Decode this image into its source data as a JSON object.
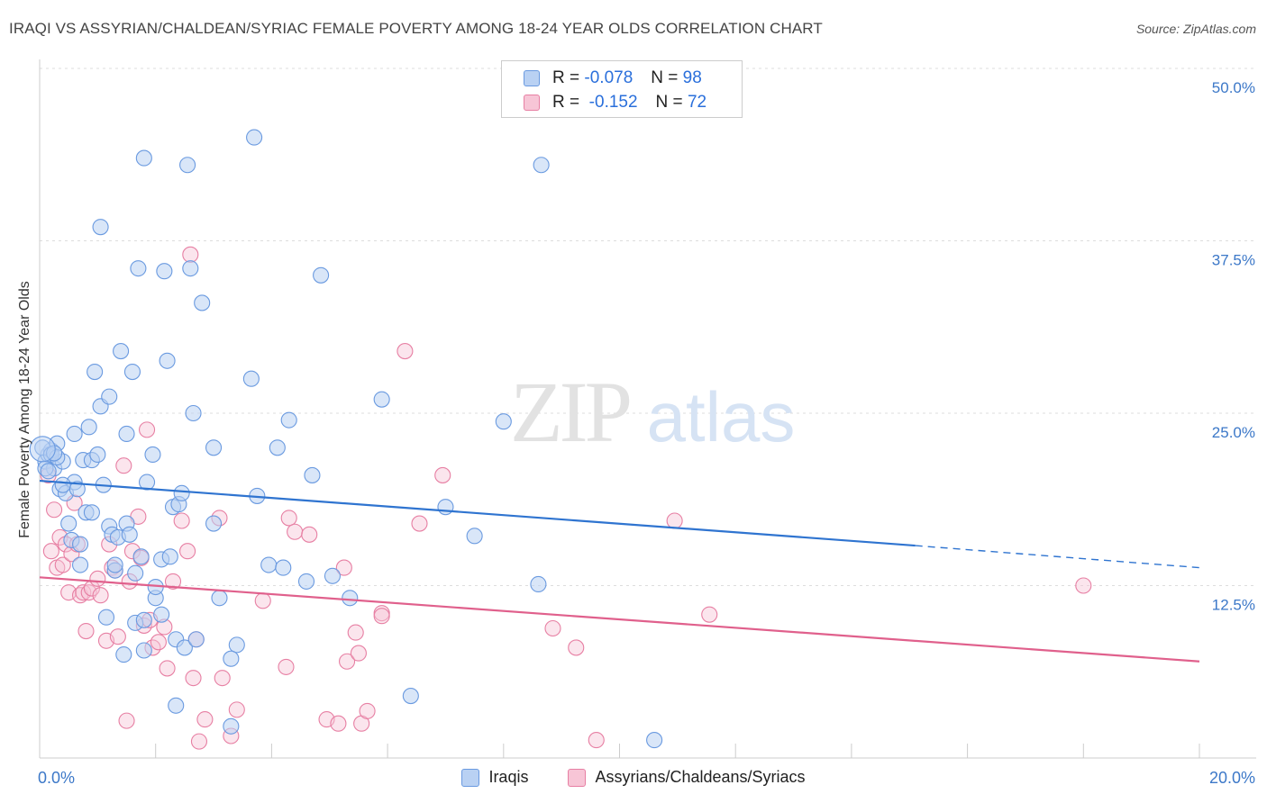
{
  "title": "IRAQI VS ASSYRIAN/CHALDEAN/SYRIAC FEMALE POVERTY AMONG 18-24 YEAR OLDS CORRELATION CHART",
  "source": "Source: ZipAtlas.com",
  "watermark": "ZIPatlas",
  "legend": {
    "rows": [
      {
        "r_label": "R =",
        "r_value": "-0.078",
        "n_label": "N =",
        "n_value": "98",
        "color": "#6a9ae0",
        "fill": "#b9d1f3"
      },
      {
        "r_label": "R =",
        "r_value": "-0.152",
        "n_label": "N =",
        "n_value": "72",
        "color": "#e77fa3",
        "fill": "#f7c5d6"
      }
    ]
  },
  "chart_data": {
    "type": "scatter",
    "ylabel": "Female Poverty Among 18-24 Year Olds",
    "x_tick_labels": [
      "0.0%",
      "20.0%"
    ],
    "y_tick_labels": [
      "12.5%",
      "25.0%",
      "37.5%",
      "50.0%"
    ],
    "x_range": [
      0,
      20
    ],
    "y_range": [
      0,
      50
    ],
    "grid": true,
    "colors": {
      "iraqis": "#2f74d0",
      "iraqis_fill": "#b9d1f3",
      "assyrians": "#e0608c",
      "assyrians_fill": "#f7c5d6",
      "tick_text": "#3c78c8"
    },
    "series": [
      {
        "name": "Iraqis",
        "points": [
          [
            0.1,
            21.5
          ],
          [
            0.15,
            22.0
          ],
          [
            0.2,
            22.3
          ],
          [
            0.25,
            21.0
          ],
          [
            0.3,
            22.8
          ],
          [
            0.35,
            19.5
          ],
          [
            0.4,
            21.5
          ],
          [
            0.45,
            19.2
          ],
          [
            0.5,
            17.0
          ],
          [
            0.55,
            15.8
          ],
          [
            0.6,
            20.0
          ],
          [
            0.65,
            19.5
          ],
          [
            0.6,
            23.5
          ],
          [
            0.7,
            15.5
          ],
          [
            0.7,
            14.0
          ],
          [
            0.75,
            21.6
          ],
          [
            0.8,
            17.8
          ],
          [
            0.85,
            24.0
          ],
          [
            0.9,
            21.6
          ],
          [
            0.9,
            17.8
          ],
          [
            0.95,
            28.0
          ],
          [
            1.0,
            22.0
          ],
          [
            1.05,
            25.5
          ],
          [
            1.05,
            38.5
          ],
          [
            1.1,
            19.8
          ],
          [
            1.15,
            10.2
          ],
          [
            1.2,
            16.8
          ],
          [
            1.2,
            26.2
          ],
          [
            1.25,
            16.2
          ],
          [
            1.3,
            13.6
          ],
          [
            1.3,
            14.0
          ],
          [
            1.35,
            16.0
          ],
          [
            1.4,
            29.5
          ],
          [
            1.45,
            7.5
          ],
          [
            1.5,
            17.0
          ],
          [
            1.5,
            23.5
          ],
          [
            1.55,
            16.2
          ],
          [
            1.6,
            28.0
          ],
          [
            1.65,
            9.8
          ],
          [
            1.65,
            13.4
          ],
          [
            1.7,
            35.5
          ],
          [
            1.75,
            14.6
          ],
          [
            1.8,
            7.8
          ],
          [
            1.8,
            10.0
          ],
          [
            1.8,
            43.5
          ],
          [
            1.85,
            20.0
          ],
          [
            1.95,
            22.0
          ],
          [
            2.0,
            11.6
          ],
          [
            2.0,
            12.4
          ],
          [
            2.1,
            10.4
          ],
          [
            2.1,
            14.4
          ],
          [
            2.15,
            35.3
          ],
          [
            2.2,
            28.8
          ],
          [
            2.25,
            14.6
          ],
          [
            2.3,
            18.2
          ],
          [
            2.35,
            8.6
          ],
          [
            2.35,
            3.8
          ],
          [
            2.4,
            18.4
          ],
          [
            2.45,
            19.2
          ],
          [
            2.5,
            8.0
          ],
          [
            2.55,
            43.0
          ],
          [
            2.6,
            35.5
          ],
          [
            2.65,
            25.0
          ],
          [
            2.7,
            8.6
          ],
          [
            2.8,
            33.0
          ],
          [
            3.0,
            17.0
          ],
          [
            3.0,
            22.5
          ],
          [
            3.1,
            11.6
          ],
          [
            3.3,
            2.3
          ],
          [
            3.4,
            8.2
          ],
          [
            3.3,
            7.2
          ],
          [
            3.65,
            27.5
          ],
          [
            3.7,
            45.0
          ],
          [
            3.75,
            19.0
          ],
          [
            3.95,
            14.0
          ],
          [
            4.1,
            22.5
          ],
          [
            4.2,
            13.8
          ],
          [
            4.3,
            24.5
          ],
          [
            4.6,
            12.8
          ],
          [
            4.7,
            20.5
          ],
          [
            4.85,
            35.0
          ],
          [
            5.05,
            13.2
          ],
          [
            5.35,
            11.6
          ],
          [
            5.9,
            26.0
          ],
          [
            6.4,
            4.5
          ],
          [
            7.0,
            18.2
          ],
          [
            7.5,
            16.1
          ],
          [
            8.0,
            24.4
          ],
          [
            8.6,
            12.6
          ],
          [
            8.65,
            43.0
          ],
          [
            10.6,
            1.3
          ],
          [
            0.05,
            22.5
          ],
          [
            0.1,
            21.0
          ],
          [
            0.2,
            22.0
          ],
          [
            0.3,
            21.8
          ],
          [
            0.15,
            20.8
          ],
          [
            0.4,
            19.8
          ],
          [
            0.25,
            22.1
          ]
        ]
      },
      {
        "name": "Assyrians/Chaldeans/Syriacs",
        "points": [
          [
            0.15,
            20.5
          ],
          [
            0.2,
            15.0
          ],
          [
            0.25,
            18.0
          ],
          [
            0.3,
            13.8
          ],
          [
            0.35,
            16.0
          ],
          [
            0.4,
            14.0
          ],
          [
            0.45,
            15.5
          ],
          [
            0.5,
            12.0
          ],
          [
            0.55,
            14.8
          ],
          [
            0.6,
            18.5
          ],
          [
            0.65,
            15.5
          ],
          [
            0.7,
            11.8
          ],
          [
            0.75,
            12.0
          ],
          [
            0.8,
            9.2
          ],
          [
            0.85,
            12.0
          ],
          [
            0.9,
            12.3
          ],
          [
            1.0,
            13.0
          ],
          [
            1.05,
            11.8
          ],
          [
            1.15,
            8.5
          ],
          [
            1.2,
            15.5
          ],
          [
            1.25,
            13.8
          ],
          [
            1.3,
            13.6
          ],
          [
            1.35,
            8.8
          ],
          [
            1.45,
            21.2
          ],
          [
            1.5,
            2.7
          ],
          [
            1.55,
            12.8
          ],
          [
            1.6,
            15.0
          ],
          [
            1.7,
            17.5
          ],
          [
            1.75,
            14.5
          ],
          [
            1.8,
            9.6
          ],
          [
            1.85,
            23.8
          ],
          [
            1.9,
            10.0
          ],
          [
            1.95,
            8.0
          ],
          [
            2.05,
            8.4
          ],
          [
            2.15,
            9.5
          ],
          [
            2.2,
            6.5
          ],
          [
            2.3,
            12.8
          ],
          [
            2.45,
            17.2
          ],
          [
            2.55,
            15.0
          ],
          [
            2.6,
            36.5
          ],
          [
            2.65,
            5.8
          ],
          [
            2.7,
            8.6
          ],
          [
            2.75,
            1.2
          ],
          [
            2.85,
            2.8
          ],
          [
            3.1,
            17.4
          ],
          [
            3.15,
            5.8
          ],
          [
            3.3,
            1.6
          ],
          [
            3.4,
            3.5
          ],
          [
            3.85,
            11.4
          ],
          [
            4.25,
            6.6
          ],
          [
            4.3,
            17.4
          ],
          [
            4.4,
            16.4
          ],
          [
            4.65,
            16.2
          ],
          [
            4.95,
            2.8
          ],
          [
            5.15,
            2.5
          ],
          [
            5.25,
            13.8
          ],
          [
            5.3,
            7.0
          ],
          [
            5.45,
            9.1
          ],
          [
            5.5,
            7.6
          ],
          [
            5.55,
            2.5
          ],
          [
            5.65,
            3.4
          ],
          [
            5.9,
            10.5
          ],
          [
            5.9,
            10.3
          ],
          [
            6.3,
            29.5
          ],
          [
            6.55,
            17.0
          ],
          [
            6.95,
            20.5
          ],
          [
            8.85,
            9.4
          ],
          [
            9.25,
            8.0
          ],
          [
            9.6,
            1.3
          ],
          [
            10.95,
            17.2
          ],
          [
            11.55,
            10.4
          ],
          [
            18.0,
            12.5
          ]
        ]
      }
    ],
    "trendlines": [
      {
        "series": "Iraqis",
        "x": [
          0,
          15.1
        ],
        "y": [
          20.1,
          15.4
        ],
        "dashed_extension": {
          "x": [
            15.1,
            20
          ],
          "y": [
            15.4,
            13.8
          ]
        }
      },
      {
        "series": "Assyrians/Chaldeans/Syriacs",
        "x": [
          0,
          20
        ],
        "y": [
          13.1,
          7.0
        ]
      }
    ]
  },
  "bottom_legend": [
    {
      "label": "Iraqis",
      "color": "#6a9ae0",
      "fill": "#b9d1f3"
    },
    {
      "label": "Assyrians/Chaldeans/Syriacs",
      "color": "#e77fa3",
      "fill": "#f7c5d6"
    }
  ]
}
